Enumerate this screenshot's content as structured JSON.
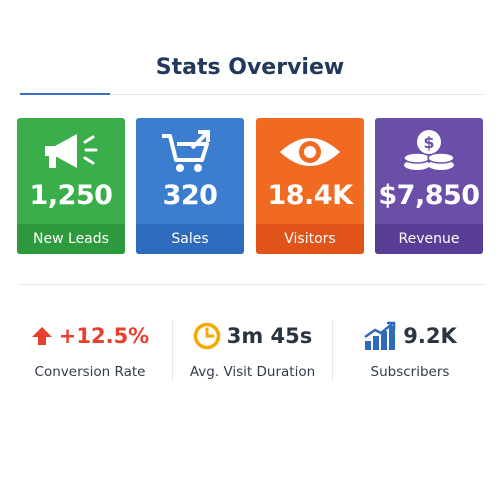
{
  "header": {
    "title": "Stats Overview"
  },
  "cards": [
    {
      "icon": "megaphone-icon",
      "value": "1,250",
      "label": "New Leads",
      "color": "#3aae4a"
    },
    {
      "icon": "shopping-cart-icon",
      "value": "320",
      "label": "Sales",
      "color": "#3b7ed0"
    },
    {
      "icon": "eye-icon",
      "value": "18.4K",
      "label": "Visitors",
      "color": "#f06a22"
    },
    {
      "icon": "coins-icon",
      "value": "$7,850",
      "label": "Revenue",
      "color": "#6a4ea8"
    }
  ],
  "metrics": [
    {
      "icon": "arrow-up-icon",
      "value": "+12.5%",
      "label": "Conversion Rate",
      "color": "#e8402e"
    },
    {
      "icon": "clock-icon",
      "value": "3m 45s",
      "label": "Avg. Visit Duration",
      "color": "#f2a900"
    },
    {
      "icon": "bar-chart-growth-icon",
      "value": "9.2K",
      "label": "Subscribers",
      "color": "#2f6bbd"
    }
  ],
  "watermark_id": "1976913446"
}
